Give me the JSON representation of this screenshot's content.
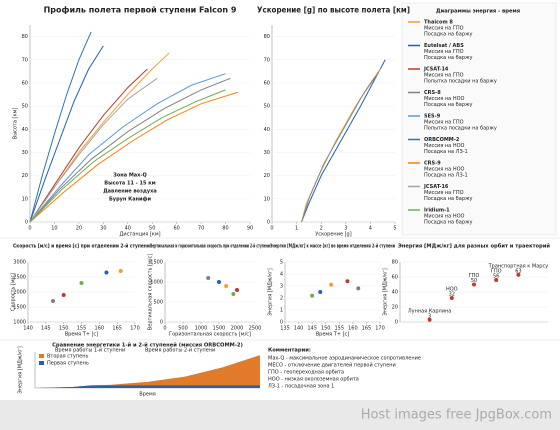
{
  "chart_data": [
    {
      "type": "line",
      "title": "Профиль полета первой ступени Falcon 9",
      "x_label": "Дистанция [км]",
      "y_label": "Высота [км]",
      "xlim": [
        0,
        90
      ],
      "xticks": [
        0,
        10,
        20,
        30,
        40,
        50,
        60,
        70,
        80,
        90
      ],
      "ylim": [
        0,
        85
      ],
      "yticks": [
        0,
        10,
        20,
        30,
        40,
        50,
        60,
        70,
        80
      ],
      "legend_title": "Диаграммы энергия - время",
      "annotations": [
        "Зона Max-Q",
        "Высота 11 - 15 км",
        "Давление воздуха",
        "Бурун Канифи"
      ],
      "series": [
        {
          "name": "Thaicom 8",
          "mission": "Миссия на ГПО",
          "landing": "Посадка на баржу",
          "color": "#f0a030",
          "x": [
            0,
            10,
            20,
            30,
            40,
            50,
            57
          ],
          "values": [
            0,
            15,
            30,
            43,
            55,
            66,
            73
          ]
        },
        {
          "name": "Eutelsat / ABS",
          "mission": "Миссия на ГПО",
          "landing": "Посадка на баржу",
          "color": "#1f5fbf",
          "x": [
            0,
            6,
            12,
            18,
            24,
            30
          ],
          "values": [
            0,
            18,
            35,
            52,
            66,
            76
          ]
        },
        {
          "name": "JCSAT-14",
          "mission": "Миссия на ГПО",
          "landing": "Попытка посадки на баржу",
          "color": "#c0392b",
          "x": [
            0,
            10,
            20,
            30,
            40,
            48
          ],
          "values": [
            0,
            16,
            32,
            46,
            58,
            66
          ]
        },
        {
          "name": "CRS-8",
          "mission": "Миссия на НОО",
          "landing": "Посадка на баржу",
          "color": "#7f7f7f",
          "x": [
            0,
            12,
            25,
            40,
            55,
            70,
            82
          ],
          "values": [
            0,
            14,
            27,
            39,
            49,
            57,
            62
          ]
        },
        {
          "name": "SES-9",
          "mission": "Миссия на ГПО",
          "landing": "Попытка посадки на баржу",
          "color": "#5b9bd5",
          "x": [
            0,
            12,
            24,
            38,
            52,
            66,
            80
          ],
          "values": [
            0,
            15,
            29,
            41,
            51,
            59,
            64
          ]
        },
        {
          "name": "ORBCOMM-2",
          "mission": "Миссия на НОО",
          "landing": "Посадка на ЛЗ-1",
          "color": "#2e75b6",
          "x": [
            0,
            5,
            10,
            15,
            20,
            25
          ],
          "values": [
            0,
            20,
            38,
            55,
            70,
            82
          ]
        },
        {
          "name": "CRS-9",
          "mission": "Миссия на НОО",
          "landing": "Посадка на ЛЗ-1",
          "color": "#ff7f0e",
          "x": [
            0,
            14,
            28,
            42,
            56,
            70,
            85
          ],
          "values": [
            0,
            13,
            25,
            35,
            44,
            51,
            56
          ]
        },
        {
          "name": "JCSAT-16",
          "mission": "Миссия на ГПО",
          "landing": "Посадка на баржу",
          "color": "#a5a5a5",
          "x": [
            0,
            10,
            20,
            30,
            40,
            52
          ],
          "values": [
            0,
            15,
            29,
            42,
            53,
            62
          ]
        },
        {
          "name": "Iridium-1",
          "mission": "Миссия на НОО",
          "landing": "Посадка на баржу",
          "color": "#70ad47",
          "x": [
            0,
            13,
            26,
            40,
            54,
            68,
            80
          ],
          "values": [
            0,
            14,
            26,
            36,
            45,
            52,
            57
          ]
        }
      ]
    },
    {
      "type": "line",
      "title": "Ускорение [g] по высоте полета [км]",
      "x_label": "Ускорение [g]",
      "xlim": [
        0,
        5
      ],
      "xticks": [
        0,
        1,
        2,
        3,
        4,
        5
      ],
      "ylim": [
        0,
        85
      ],
      "yticks": [
        0,
        10,
        20,
        30,
        40,
        50,
        60,
        70,
        80
      ],
      "series": [
        {
          "color": "#1f5fbf",
          "x": [
            1.2,
            1.5,
            2,
            2.8,
            3.6,
            4.2,
            4.6
          ],
          "values": [
            0,
            8,
            20,
            35,
            50,
            62,
            70
          ]
        },
        {
          "color": "#f0a030",
          "x": [
            1.2,
            1.4,
            1.9,
            2.6,
            3.4,
            4.0,
            4.4
          ],
          "values": [
            0,
            8,
            20,
            35,
            50,
            60,
            66
          ]
        },
        {
          "color": "#8a8a8a",
          "x": [
            1.2,
            1.5,
            2.1,
            2.9,
            3.7,
            4.3
          ],
          "values": [
            0,
            10,
            25,
            40,
            55,
            64
          ]
        }
      ]
    },
    {
      "type": "scatter",
      "title": "Скорость [м/с] и время [с] при отделении 2-й ступени",
      "x_label": "Время T+ [с]",
      "y_label": "Скорость [м/с]",
      "xlim": [
        140,
        170
      ],
      "xticks": [
        140,
        145,
        150,
        155,
        160,
        165,
        170
      ],
      "ylim": [
        1000,
        3000
      ],
      "yticks": [
        1000,
        1500,
        2000,
        2500,
        3000
      ],
      "x": [
        162,
        166,
        150,
        147,
        155
      ],
      "values": [
        2650,
        2700,
        1900,
        1700,
        2300
      ],
      "colors": [
        "#1f5fbf",
        "#f0a030",
        "#c0392b",
        "#7f7f7f",
        "#70ad47"
      ]
    },
    {
      "type": "scatter",
      "title": "Вертикальная и горизонтальная скорость при отделении 2-й ступени",
      "x_label": "Горизонтальная скорость [м/с]",
      "y_label": "Вертикальная скорость [м/с]",
      "xlim": [
        0,
        2500
      ],
      "xticks": [
        0,
        500,
        1000,
        1500,
        2000,
        2500
      ],
      "ylim": [
        0,
        1500
      ],
      "yticks": [
        0,
        500,
        1000,
        1500
      ],
      "x": [
        1500,
        1700,
        2000,
        1200,
        1900
      ],
      "values": [
        1000,
        900,
        800,
        1100,
        700
      ],
      "colors": [
        "#1f5fbf",
        "#f0a030",
        "#c0392b",
        "#7f7f7f",
        "#70ad47"
      ]
    },
    {
      "type": "scatter",
      "title": "Энергия [МДж/кг] к массе [кг] во время отделения 2-й ступени",
      "x_label": "Время T+ [с]",
      "y_label": "Энергия [МДж/кг]",
      "xlim": [
        135,
        170
      ],
      "xticks": [
        135,
        140,
        145,
        150,
        155,
        160,
        165,
        170
      ],
      "ylim": [
        0,
        5
      ],
      "yticks": [
        0,
        1,
        2,
        3,
        4,
        5
      ],
      "x": [
        148,
        152,
        158,
        162,
        145
      ],
      "values": [
        2.5,
        3.1,
        3.4,
        2.8,
        2.2
      ],
      "colors": [
        "#1f5fbf",
        "#f0a030",
        "#c0392b",
        "#7f7f7f",
        "#70ad47"
      ]
    },
    {
      "type": "scatter",
      "title": "Энергия [МДж/кг] для разных орбит и траекторий",
      "y_label": "Энергия [МДж/кг]",
      "xlim": [
        0,
        10
      ],
      "ylim": [
        0,
        80
      ],
      "yticks": [
        0,
        20,
        40,
        60,
        80
      ],
      "x": [
        2,
        3.5,
        5,
        6.5,
        8
      ],
      "values": [
        3,
        32,
        50,
        56,
        63
      ],
      "value_labels": [
        "3",
        "32",
        "50",
        "56",
        "63"
      ],
      "point_names": [
        "Лунная Карлина",
        "НОО",
        "ГПО",
        "ГПО",
        "Транспортная к Марсу"
      ],
      "colors": [
        "#c0392b",
        "#c0392b",
        "#c0392b",
        "#c0392b",
        "#c0392b"
      ]
    },
    {
      "type": "area",
      "title": "Сравнение энергетики 1-й и 2-й ступеней (миссия ORBCOMM-2)",
      "x_label": "Время",
      "y_label": "Энергия [МДж/кг]",
      "xlim": [
        0,
        600
      ],
      "ylim": [
        0,
        35
      ],
      "annotations": [
        "Время работы 1-й ступени",
        "Время работы 2-й ступени"
      ],
      "x": [
        0,
        100,
        150,
        200,
        300,
        400,
        500,
        600
      ],
      "series": [
        {
          "name": "Вторая ступень",
          "color": "#e07b2a",
          "values": [
            0,
            1,
            2.5,
            3,
            6,
            11,
            20,
            32
          ]
        },
        {
          "name": "Первая ступень",
          "color": "#2e5f9e",
          "values": [
            0,
            1,
            2.5,
            2.5,
            2.5,
            2.5,
            2.5,
            2.5
          ]
        }
      ]
    }
  ],
  "notes": {
    "title": "Комментарии:",
    "items": [
      "Max-Q - максимальное аэродинамическое сопротивление",
      "MECO - отключение двигателей первой ступени",
      "ГПО - геопереходная орбита",
      "НОО - низкая околоземная орбита",
      "ЛЗ-1 - посадочная зона 1"
    ]
  },
  "footer": "Host images free JpgBox.com"
}
